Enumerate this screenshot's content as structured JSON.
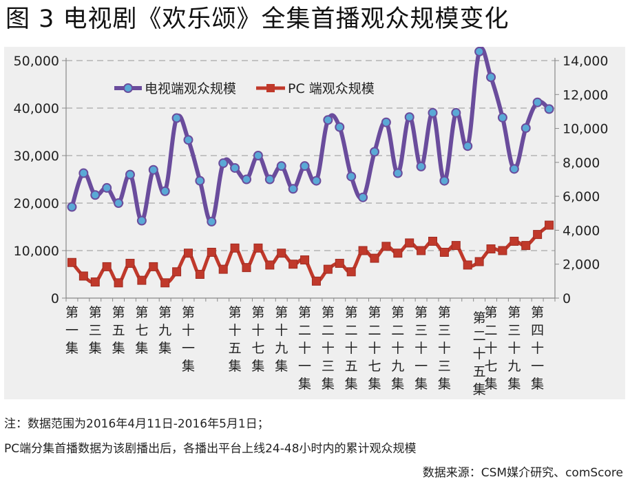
{
  "title": "图 3 电视剧《欢乐颂》全集首播观众规模变化",
  "notes": {
    "line1": "注：数据范围为2016年4月11日-2016年5月1日；",
    "line2": "PC端分集首播数据为该剧播出后，各播出平台上线24-48小时内的累计观众规模",
    "source": "数据来源：CSM媒介研究、comScore"
  },
  "colors": {
    "tv": "#6a4c9c",
    "tv_marker": "#5aa9d6",
    "pc": "#c0392b",
    "grid": "#a8a8a8",
    "background": "#efefef"
  },
  "chart_data": {
    "type": "line",
    "legend_position": "top-left",
    "grid": true,
    "y_left": {
      "lim": [
        0,
        50000
      ],
      "ticks": [
        "0",
        "10,000",
        "20,000",
        "30,000",
        "40,000",
        "50,000"
      ]
    },
    "y_right": {
      "lim": [
        0,
        14000
      ],
      "ticks": [
        "0",
        "2,000",
        "4,000",
        "6,000",
        "8,000",
        "10,000",
        "12,000",
        "14,000"
      ]
    },
    "x_labels": [
      {
        "index": 0,
        "text": "第一集"
      },
      {
        "index": 2,
        "text": "第三集"
      },
      {
        "index": 4,
        "text": "第五集"
      },
      {
        "index": 6,
        "text": "第七集"
      },
      {
        "index": 8,
        "text": "第九集"
      },
      {
        "index": 10,
        "text": "第十一集"
      },
      {
        "index": 14,
        "text": "第十五集"
      },
      {
        "index": 16,
        "text": "第十七集"
      },
      {
        "index": 18,
        "text": "第十九集"
      },
      {
        "index": 20,
        "text": "第二十一集"
      },
      {
        "index": 22,
        "text": "第二十三集"
      },
      {
        "index": 24,
        "text": "第二十五集"
      },
      {
        "index": 26,
        "text": "第二十七集"
      },
      {
        "index": 28,
        "text": "第二十九集"
      },
      {
        "index": 30,
        "text": "第三十一集"
      },
      {
        "index": 32,
        "text": "第三十三集"
      },
      {
        "index": 35,
        "text": "第二十五集"
      },
      {
        "index": 36,
        "text": "第二十七集"
      },
      {
        "index": 38,
        "text": "第三十九集"
      },
      {
        "index": 40,
        "text": "第四十一集"
      }
    ],
    "series": [
      {
        "name": "电视端观众规模",
        "axis": "left",
        "values": [
          19200,
          26300,
          21700,
          23200,
          20000,
          26000,
          16300,
          27000,
          22500,
          37900,
          33300,
          24700,
          16100,
          28400,
          27400,
          25000,
          30000,
          25000,
          27800,
          23000,
          27800,
          24700,
          37500,
          36000,
          25600,
          21200,
          30800,
          37000,
          26300,
          38100,
          27700,
          39000,
          24700,
          39000,
          32000,
          51900,
          46500,
          38000,
          27200,
          35800,
          41200,
          39800
        ]
      },
      {
        "name": "PC 端观众规模",
        "axis": "right",
        "values": [
          2100,
          1300,
          950,
          1850,
          900,
          2050,
          1050,
          1850,
          900,
          1550,
          2650,
          1400,
          2700,
          1700,
          2950,
          1800,
          2950,
          1950,
          2650,
          2000,
          2250,
          1000,
          1700,
          2050,
          1550,
          2800,
          2350,
          3050,
          2650,
          3250,
          2800,
          3350,
          2700,
          3100,
          1950,
          2150,
          2900,
          2800,
          3350,
          3100,
          3750,
          4300
        ]
      }
    ]
  }
}
